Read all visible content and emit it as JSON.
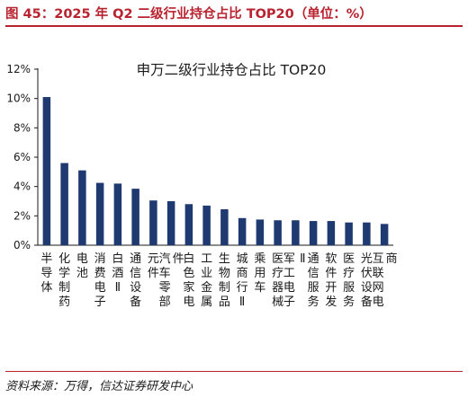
{
  "header": {
    "title": "图 45：2025 年 Q2 二级行业持仓占比 TOP20（单位：%）"
  },
  "source": "资料来源：万得，信达证券研发中心",
  "colors": {
    "accent": "#b8232f",
    "bar": "#1f3a70"
  },
  "chart_data": {
    "type": "bar",
    "title": "申万二级行业持仓占比 TOP20",
    "xlabel": "",
    "ylabel": "",
    "ylim": [
      0,
      12
    ],
    "yticks": [
      "0%",
      "2%",
      "4%",
      "6%",
      "8%",
      "10%",
      "12%"
    ],
    "grid": false,
    "categories": [
      "半导体",
      "化学制药",
      "电池",
      "消费电子",
      "白酒Ⅱ",
      "通信设备",
      "元件",
      "汽车零部件",
      "白色家电",
      "工业金属",
      "生物制品",
      "城商行Ⅱ",
      "乘用车",
      "医疗器械",
      "军工电子Ⅱ",
      "通信服务",
      "软件开发",
      "医疗服务",
      "光伏设备",
      "互联网电商"
    ],
    "values": [
      10.1,
      5.6,
      5.1,
      4.25,
      4.2,
      3.85,
      3.05,
      3.0,
      2.8,
      2.7,
      2.45,
      1.85,
      1.75,
      1.7,
      1.7,
      1.65,
      1.65,
      1.55,
      1.55,
      1.45
    ]
  }
}
